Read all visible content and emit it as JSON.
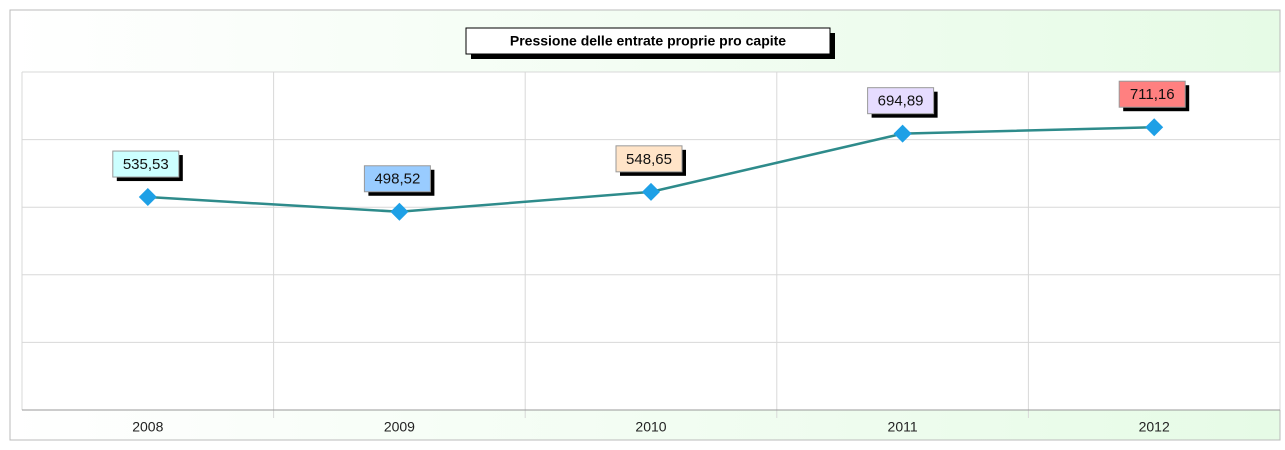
{
  "chart_data": {
    "type": "line",
    "title": "Pressione delle entrate proprie pro capite",
    "categories": [
      "2008",
      "2009",
      "2010",
      "2011",
      "2012"
    ],
    "series": [
      {
        "name": "Pressione delle entrate proprie pro capite",
        "color": "#2e8b8b",
        "marker_color": "#1ea0e6",
        "values": [
          535.53,
          498.52,
          548.65,
          694.89,
          711.16
        ],
        "value_labels": [
          "535,53",
          "498,52",
          "548,65",
          "694,89",
          "711,16"
        ],
        "label_colors": [
          "#ccffff",
          "#99ccff",
          "#ffe4c8",
          "#e6dcff",
          "#ff8080"
        ]
      }
    ],
    "ylim": [
      0,
      850
    ],
    "yticks": [
      0,
      170,
      340,
      510,
      680,
      850
    ],
    "grid": true
  }
}
